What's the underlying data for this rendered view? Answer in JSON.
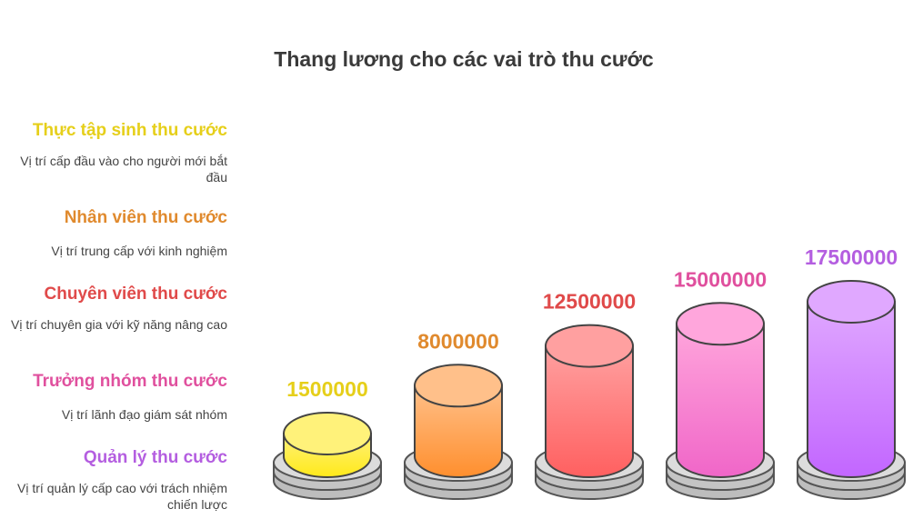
{
  "chart_data": {
    "type": "bar",
    "title": "Thang lương cho các vai trò thu cước",
    "categories": [
      "Thực tập sinh thu cước",
      "Nhân viên thu cước",
      "Chuyên viên thu cước",
      "Trưởng nhóm thu cước",
      "Quản lý thu cước"
    ],
    "descriptions": [
      "Vị trí cấp đầu vào cho người mới bắt đầu",
      "Vị trí trung cấp với kinh nghiệm",
      "Vị trí chuyên gia với kỹ năng nâng cao",
      "Vị trí lãnh đạo giám sát nhóm",
      "Vị trí quản lý cấp cao với trách nhiệm chiến lược"
    ],
    "values": [
      1500000,
      8000000,
      12500000,
      15000000,
      17500000
    ],
    "value_labels": [
      "1500000",
      "8000000",
      "12500000",
      "15000000",
      "17500000"
    ],
    "colors": [
      "#e6cf1a",
      "#e08a2e",
      "#e04a4a",
      "#e0509e",
      "#b45ee0"
    ],
    "xlabel": "",
    "ylabel": ""
  }
}
